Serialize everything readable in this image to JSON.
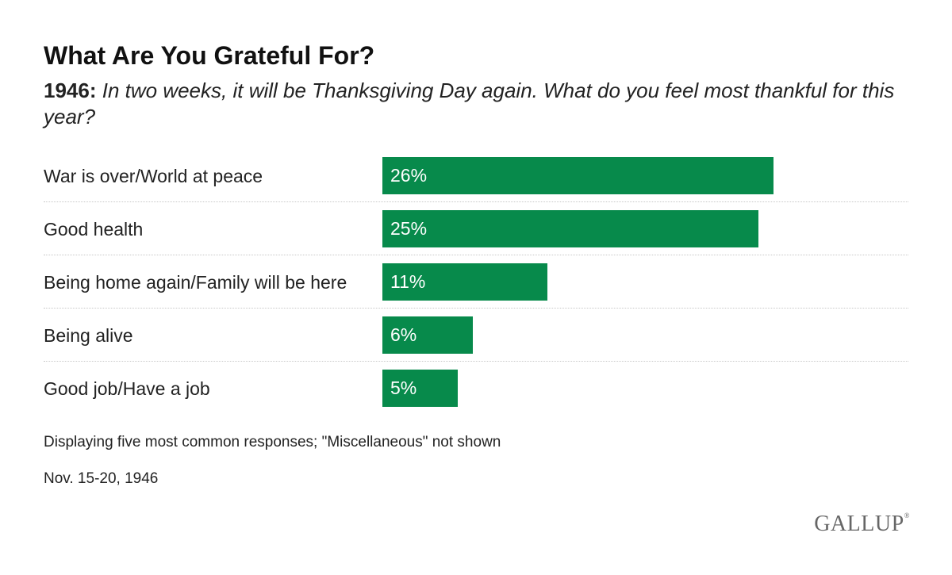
{
  "chart_data": {
    "type": "bar",
    "orientation": "horizontal",
    "title": "What Are You Grateful For?",
    "subtitle_year": "1946:",
    "subtitle_question": "In two weeks, it will be Thanksgiving Day again. What do you feel most thankful for this year?",
    "categories": [
      "War is over/World at peace",
      "Good health",
      "Being home again/Family will be here",
      "Being alive",
      "Good job/Have a job"
    ],
    "values": [
      26,
      25,
      11,
      6,
      5
    ],
    "value_labels": [
      "26%",
      "25%",
      "11%",
      "6%",
      "5%"
    ],
    "unit": "%",
    "xlim": [
      0,
      30
    ],
    "xlabel": "",
    "ylabel": "",
    "grid": false,
    "bar_color": "#078a4b",
    "note": "Displaying five most common responses; \"Miscellaneous\" not shown",
    "date": "Nov. 15-20, 1946"
  },
  "brand": {
    "logo_text": "GALLUP",
    "logo_mark": "®"
  }
}
